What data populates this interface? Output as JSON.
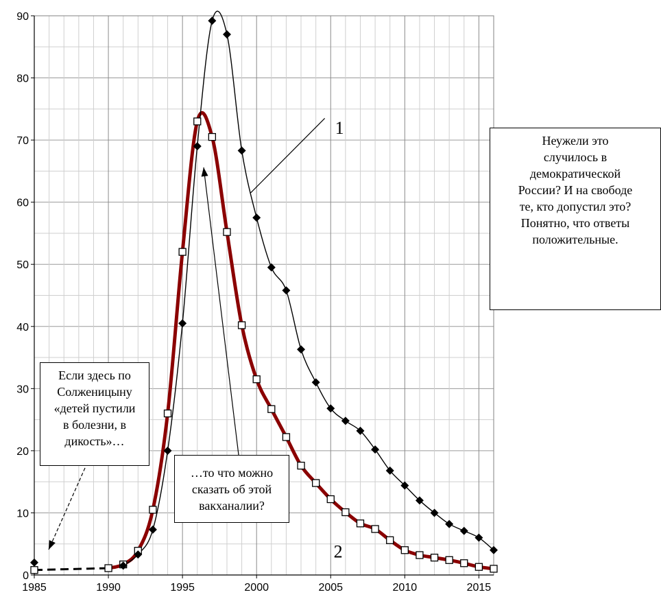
{
  "chart_data": {
    "type": "line",
    "title": "",
    "xlabel": "",
    "ylabel": "",
    "xlim": [
      1985,
      2016
    ],
    "ylim": [
      0,
      90
    ],
    "x_ticks": [
      1985,
      1990,
      1995,
      2000,
      2005,
      2010,
      2015
    ],
    "y_ticks": [
      0,
      10,
      20,
      30,
      40,
      50,
      60,
      70,
      80,
      90
    ],
    "grid": true,
    "legend": "none",
    "series": [
      {
        "label": "1",
        "color": "#000000",
        "marker": "diamond",
        "points": [
          [
            1985,
            2.0
          ],
          [
            1991,
            1.5
          ],
          [
            1992,
            3.3
          ],
          [
            1993,
            7.3
          ],
          [
            1994,
            20.0
          ],
          [
            1995,
            40.5
          ],
          [
            1996,
            69.0
          ],
          [
            1997,
            89.2
          ],
          [
            1998,
            87.0
          ],
          [
            1999,
            68.3
          ],
          [
            2000,
            57.5
          ],
          [
            2001,
            49.5
          ],
          [
            2002,
            45.8
          ],
          [
            2003,
            36.3
          ],
          [
            2004,
            31.0
          ],
          [
            2005,
            26.8
          ],
          [
            2006,
            24.8
          ],
          [
            2007,
            23.2
          ],
          [
            2008,
            20.2
          ],
          [
            2009,
            16.8
          ],
          [
            2010,
            14.4
          ],
          [
            2011,
            12.0
          ],
          [
            2012,
            10.0
          ],
          [
            2013,
            8.2
          ],
          [
            2014,
            7.1
          ],
          [
            2015,
            6.0
          ],
          [
            2016,
            4.0
          ]
        ]
      },
      {
        "label": "2",
        "color": "#8b0000",
        "marker": "square",
        "points": [
          [
            1985,
            0.8
          ],
          [
            1990,
            1.1
          ],
          [
            1991,
            1.7
          ],
          [
            1992,
            3.9
          ],
          [
            1993,
            10.5
          ],
          [
            1994,
            26.0
          ],
          [
            1995,
            52.0
          ],
          [
            1996,
            73.0
          ],
          [
            1997,
            70.5
          ],
          [
            1998,
            55.2
          ],
          [
            1999,
            40.2
          ],
          [
            2000,
            31.5
          ],
          [
            2001,
            26.7
          ],
          [
            2002,
            22.2
          ],
          [
            2003,
            17.6
          ],
          [
            2004,
            14.8
          ],
          [
            2005,
            12.2
          ],
          [
            2006,
            10.1
          ],
          [
            2007,
            8.3
          ],
          [
            2008,
            7.4
          ],
          [
            2009,
            5.6
          ],
          [
            2010,
            4.0
          ],
          [
            2011,
            3.2
          ],
          [
            2012,
            2.8
          ],
          [
            2013,
            2.4
          ],
          [
            2014,
            1.9
          ],
          [
            2015,
            1.3
          ],
          [
            2016,
            1.0
          ]
        ]
      }
    ],
    "annotations": {
      "left_note": "Если здесь по\nСолженицыну\n«детей пустили\nв болезни, в\nдикость»…",
      "middle_note": "…то что можно\nсказать об этой\nвакханалии?",
      "right_note": "Неужели это\nслучилось в\nдемократической\nРоссии? И на свободе\nте, кто допустил это?\nПонятно, что ответы\nположительные.",
      "label_1": "1",
      "label_2": "2"
    }
  }
}
